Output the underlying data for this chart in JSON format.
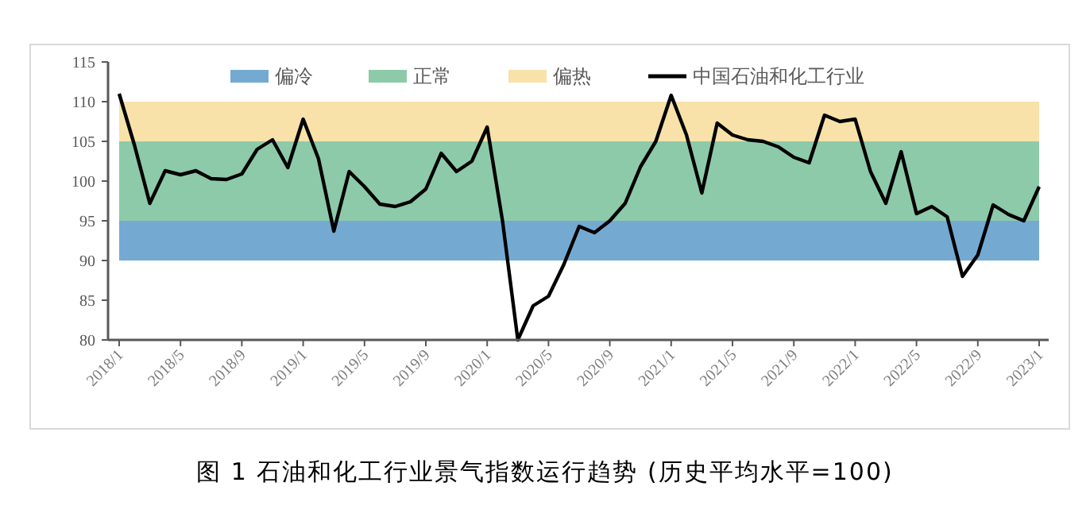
{
  "chart_data": {
    "type": "line",
    "title": "图 1 石油和化工行业景气指数运行趋势 (历史平均水平=100)",
    "categories": [
      "2018/1",
      null,
      null,
      null,
      "2018/5",
      null,
      null,
      null,
      "2018/9",
      null,
      null,
      null,
      "2019/1",
      null,
      null,
      null,
      "2019/5",
      null,
      null,
      null,
      "2019/9",
      null,
      null,
      null,
      "2020/1",
      null,
      null,
      null,
      "2020/5",
      null,
      null,
      null,
      "2020/9",
      null,
      null,
      null,
      "2021/1",
      null,
      null,
      null,
      "2021/5",
      null,
      null,
      null,
      "2021/9",
      null,
      null,
      null,
      "2022/1",
      null,
      null,
      null,
      "2022/5",
      null,
      null,
      null,
      "2022/9",
      null,
      null,
      null,
      "2023/1"
    ],
    "series": [
      {
        "name": "中国石油和化工行业",
        "color": "#000000",
        "values": [
          111,
          104.5,
          97.2,
          101.3,
          100.8,
          101.3,
          100.3,
          100.2,
          100.9,
          104,
          105.2,
          101.7,
          107.8,
          102.8,
          93.7,
          101.2,
          99.3,
          97.1,
          96.8,
          97.4,
          99,
          103.5,
          101.2,
          102.5,
          106.8,
          95,
          80,
          84.3,
          85.5,
          89.5,
          94.3,
          93.5,
          95,
          97.2,
          101.8,
          105,
          110.8,
          105.8,
          98.5,
          107.3,
          105.8,
          105.2,
          105,
          104.3,
          103,
          102.3,
          108.3,
          107.5,
          107.8,
          101.2,
          97.2,
          103.7,
          95.9,
          96.8,
          95.5,
          88,
          90.7,
          97,
          95.8,
          95,
          99.3
        ]
      }
    ],
    "bands": [
      {
        "axis": "y",
        "from": 90,
        "to": 95,
        "label": "偏冷",
        "color": "#74aad2"
      },
      {
        "axis": "y",
        "from": 95,
        "to": 105,
        "label": "正常",
        "color": "#8dcaa9"
      },
      {
        "axis": "y",
        "from": 105,
        "to": 110,
        "label": "偏热",
        "color": "#f8e2a9"
      }
    ],
    "ylim": [
      80,
      115
    ],
    "yticks": [
      80,
      85,
      90,
      95,
      100,
      105,
      110,
      115
    ],
    "grid": false,
    "legend": "top",
    "marker": "none",
    "line_style": "solid"
  }
}
